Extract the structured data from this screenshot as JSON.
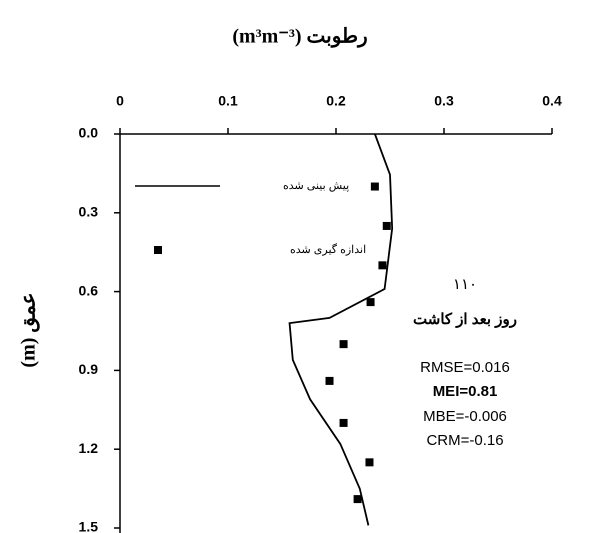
{
  "chart_data": {
    "type": "profile",
    "x_label": "رطوبت (m³m⁻³)",
    "y_label": "عمق (m)",
    "xlim": [
      0,
      0.4
    ],
    "xticks": [
      0,
      0.1,
      0.2,
      0.3,
      0.4
    ],
    "ylim": [
      0,
      1.5
    ],
    "yticks": [
      {
        "value": 0,
        "label": "0.0"
      },
      0.3,
      0.6,
      0.9,
      1.2,
      1.5
    ],
    "y_inverted": true,
    "series": [
      {
        "name": "پیش بینی شده",
        "type": "line",
        "color": "#000000",
        "x": [
          0.236,
          0.25,
          0.252,
          0.245,
          0.194,
          0.157,
          0.16,
          0.176,
          0.204,
          0.222,
          0.23
        ],
        "y": [
          0,
          0.155,
          0.36,
          0.59,
          0.7,
          0.72,
          0.86,
          1.01,
          1.18,
          1.35,
          1.49
        ]
      },
      {
        "name": "اندازه گیری شده",
        "type": "scatter",
        "color": "#000000",
        "x": [
          0.236,
          0.247,
          0.243,
          0.232,
          0.207,
          0.194,
          0.207,
          0.231,
          0.22
        ],
        "y": [
          0.2,
          0.35,
          0.5,
          0.64,
          0.8,
          0.94,
          1.1,
          1.25,
          1.39
        ]
      }
    ],
    "annotations": [
      "۱۱۰",
      "روز بعد از کاشت",
      "RMSE=0.016",
      "MEI=0.81",
      "MBE=-0.006",
      "CRM=-0.16"
    ]
  }
}
